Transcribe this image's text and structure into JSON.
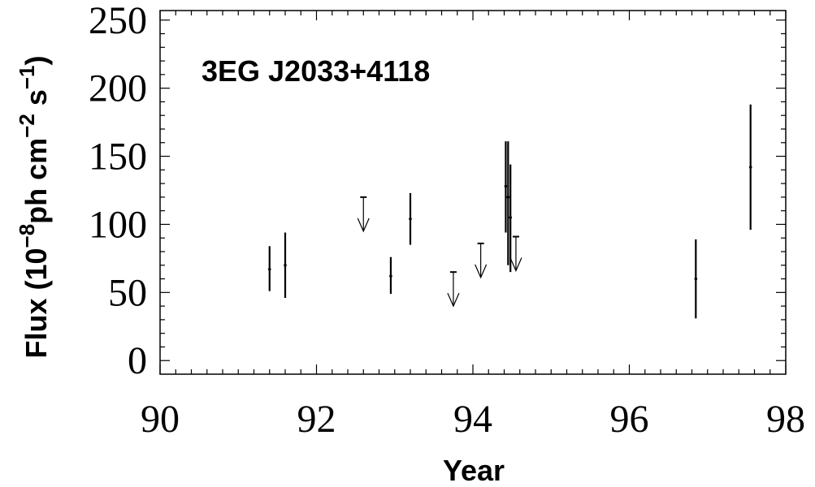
{
  "chart_data": {
    "type": "scatter",
    "title": "3EG J2033+4118",
    "xlabel": "Year",
    "ylabel": "Flux (10",
    "ylabel_exp1": "−8",
    "ylabel_mid": "ph cm",
    "ylabel_exp2": "−2",
    "ylabel_mid2": " s",
    "ylabel_exp3": "−1",
    "ylabel_end": ")",
    "xlim": [
      90,
      98
    ],
    "ylim": [
      -10,
      257
    ],
    "x_ticks": [
      90,
      92,
      94,
      96,
      98
    ],
    "x_tick_labels": [
      "90",
      "92",
      "94",
      "96",
      "98"
    ],
    "y_ticks": [
      0,
      50,
      100,
      150,
      200,
      250
    ],
    "y_tick_labels": [
      "0",
      "50",
      "100",
      "150",
      "200",
      "250"
    ],
    "grid": false,
    "detections": [
      {
        "x": 91.4,
        "y": 67,
        "low": 51,
        "high": 84
      },
      {
        "x": 91.6,
        "y": 70,
        "low": 46,
        "high": 94
      },
      {
        "x": 92.95,
        "y": 62,
        "low": 49,
        "high": 76
      },
      {
        "x": 93.2,
        "y": 104,
        "low": 85,
        "high": 123
      },
      {
        "x": 94.42,
        "y": 128,
        "low": 94,
        "high": 161
      },
      {
        "x": 94.45,
        "y": 120,
        "low": 70,
        "high": 161
      },
      {
        "x": 94.48,
        "y": 105,
        "low": 65,
        "high": 144
      },
      {
        "x": 96.85,
        "y": 60,
        "low": 31,
        "high": 89
      },
      {
        "x": 97.55,
        "y": 142,
        "low": 96,
        "high": 188
      }
    ],
    "upper_limits": [
      {
        "x": 92.6,
        "y": 120
      },
      {
        "x": 93.75,
        "y": 65
      },
      {
        "x": 94.1,
        "y": 86
      },
      {
        "x": 94.55,
        "y": 91
      }
    ]
  }
}
